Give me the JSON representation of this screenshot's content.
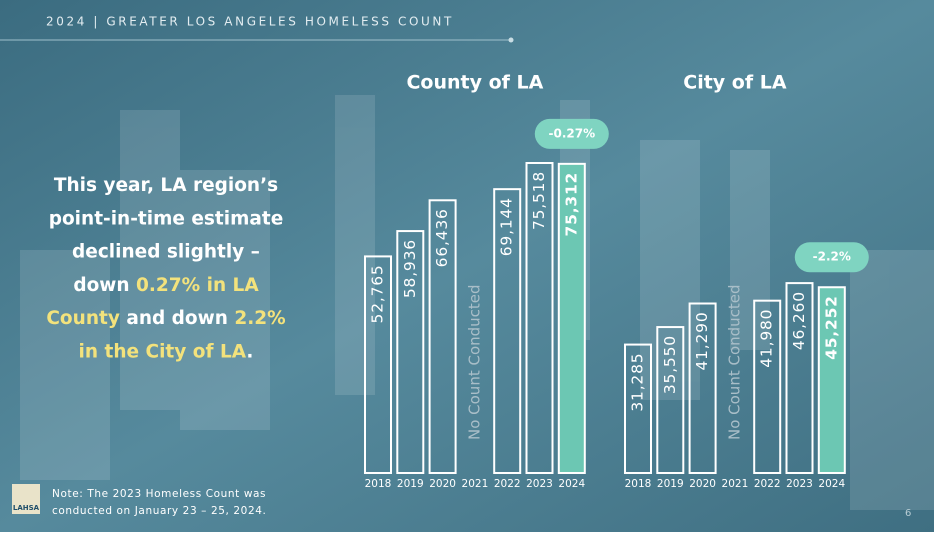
{
  "header": "2024 | GREATER LOS ANGELES HOMELESS COUNT",
  "summary": [
    [
      {
        "text": "This year, LA region’s"
      }
    ],
    [
      {
        "text": "point-in-time estimate"
      }
    ],
    [
      {
        "text": "declined slightly –"
      }
    ],
    [
      {
        "text": "down "
      },
      {
        "text": "0.27% in LA",
        "highlight": true
      }
    ],
    [
      {
        "text": "County",
        "highlight": true
      },
      {
        "text": " and down "
      },
      {
        "text": "2.2%",
        "highlight": true
      }
    ],
    [
      {
        "text": "in the City of LA",
        "highlight": true
      },
      {
        "text": "."
      }
    ]
  ],
  "highlight_color": "#f3e27c",
  "note": [
    "Note: The 2023 Homeless Count was",
    "conducted on January 23 – 25, 2024."
  ],
  "logo": "LAHSA",
  "page_number": "6",
  "chart_data": [
    {
      "type": "bar",
      "title": "County of LA",
      "categories": [
        "2018",
        "2019",
        "2020",
        "2021",
        "2022",
        "2023",
        "2024"
      ],
      "values": [
        52765,
        58936,
        66436,
        null,
        69144,
        75518,
        75312
      ],
      "value_labels": [
        "52,765",
        "58,936",
        "66,436",
        null,
        "69,144",
        "75,518",
        "75,312"
      ],
      "stroke": "#ffffff",
      "colors": [
        "none",
        "none",
        "none",
        "none",
        "none",
        "none",
        "#6cc7b3"
      ],
      "annotations": [
        {
          "text": "No Count Conducted",
          "category": "2021",
          "color": "#a9bec8"
        },
        {
          "text": "-0.27%",
          "category": "2024",
          "color": "#7fd4c1"
        }
      ]
    },
    {
      "type": "bar",
      "title": "City of LA",
      "categories": [
        "2018",
        "2019",
        "2020",
        "2021",
        "2022",
        "2023",
        "2024"
      ],
      "values": [
        31285,
        35550,
        41290,
        null,
        41980,
        46260,
        45252
      ],
      "value_labels": [
        "31,285",
        "35,550",
        "41,290",
        null,
        "41,980",
        "46,260",
        "45,252"
      ],
      "stroke": "#ffffff",
      "colors": [
        "none",
        "none",
        "none",
        "none",
        "none",
        "none",
        "#6cc7b3"
      ],
      "annotations": [
        {
          "text": "No Count Conducted",
          "category": "2021",
          "color": "#a9bec8"
        },
        {
          "text": "-2.2%",
          "category": "2024",
          "color": "#7fd4c1"
        }
      ]
    }
  ]
}
